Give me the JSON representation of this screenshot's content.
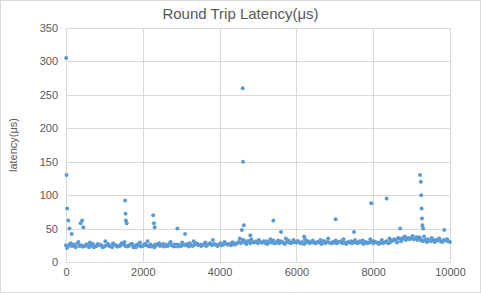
{
  "chart_data": {
    "type": "scatter",
    "title": "Round Trip Latency(μs)",
    "y_label": "latency(μs)",
    "color": "#5b9bd5",
    "marker": "circle",
    "grid": true,
    "xlim": [
      0,
      10000
    ],
    "xticks": [
      0,
      2000,
      4000,
      6000,
      8000,
      10000
    ],
    "ylim": [
      0,
      350
    ],
    "yticks": [
      0,
      50,
      100,
      150,
      200,
      250,
      300,
      350
    ],
    "x": [
      0,
      50,
      100,
      150,
      200,
      250,
      300,
      350,
      400,
      450,
      500,
      550,
      600,
      650,
      700,
      750,
      800,
      850,
      900,
      950,
      1000,
      1050,
      1100,
      1150,
      1200,
      1250,
      1300,
      1350,
      1400,
      1450,
      1500,
      1550,
      1600,
      1650,
      1700,
      1750,
      1800,
      1850,
      1900,
      1950,
      2000,
      2050,
      2100,
      2150,
      2200,
      2250,
      2300,
      2350,
      2400,
      2450,
      2500,
      2550,
      2600,
      2650,
      2700,
      2750,
      2800,
      2850,
      2900,
      2950,
      3000,
      3050,
      3100,
      3150,
      3200,
      3250,
      3300,
      3350,
      3400,
      3450,
      3500,
      3550,
      3600,
      3650,
      3700,
      3750,
      3800,
      3850,
      3900,
      3950,
      4000,
      4050,
      4100,
      4150,
      4200,
      4250,
      4300,
      4350,
      4400,
      4450,
      4500,
      4550,
      4600,
      4650,
      4700,
      4750,
      4800,
      4850,
      4900,
      4950,
      5000,
      5050,
      5100,
      5150,
      5200,
      5250,
      5300,
      5350,
      5400,
      5450,
      5500,
      5550,
      5600,
      5650,
      5700,
      5750,
      5800,
      5850,
      5900,
      5950,
      6000,
      6050,
      6100,
      6150,
      6200,
      6250,
      6300,
      6350,
      6400,
      6450,
      6500,
      6550,
      6600,
      6650,
      6700,
      6750,
      6800,
      6850,
      6900,
      6950,
      7000,
      7050,
      7100,
      7150,
      7200,
      7250,
      7300,
      7350,
      7400,
      7450,
      7500,
      7550,
      7600,
      7650,
      7700,
      7750,
      7800,
      7850,
      7900,
      7950,
      8000,
      8050,
      8100,
      8150,
      8200,
      8250,
      8300,
      8350,
      8400,
      8450,
      8500,
      8550,
      8600,
      8650,
      8700,
      8750,
      8800,
      8850,
      8900,
      8950,
      9000,
      9050,
      9100,
      9150,
      9200,
      9250,
      9300,
      9350,
      9400,
      9450,
      9500,
      9550,
      9600,
      9650,
      9700,
      9750,
      9800,
      9850,
      9900,
      9950,
      10000,
      25,
      125,
      225,
      325,
      425,
      525,
      625,
      725,
      825,
      925,
      1025,
      1125,
      1225,
      1325,
      1425,
      1525,
      1625,
      1725,
      1825,
      1925,
      2025,
      2125,
      2225,
      2325,
      2425,
      2525,
      2625,
      2725,
      2825,
      2925,
      3025,
      3125,
      3225,
      3325,
      3425,
      3525,
      3625,
      3725,
      3825,
      3925,
      4025,
      4125,
      4225,
      4325,
      4425,
      4525,
      4625,
      4725,
      4825,
      4925,
      5025,
      5125,
      5225,
      5325,
      5425,
      5525,
      5625,
      5725,
      5825,
      5925,
      6025,
      6125,
      6225,
      6325,
      6425,
      6525,
      6625,
      6725,
      6825,
      6925,
      7025,
      7125,
      7225,
      7325,
      7425,
      7525,
      7625,
      7725,
      7825,
      7925,
      8025,
      8125,
      8225,
      8325,
      8425,
      8525,
      8625,
      8725,
      8825,
      8925,
      9025,
      9125,
      9225,
      9325,
      9425,
      9525,
      9625,
      9725,
      9825,
      9925,
      5,
      15,
      30,
      60,
      90,
      150,
      380,
      420,
      450,
      1540,
      1550,
      1560,
      1580,
      2270,
      2290,
      2310,
      2900,
      3100,
      4580,
      4600,
      4610,
      4630,
      5400,
      5600,
      7020,
      7500,
      7950,
      8350,
      8700,
      9220,
      9240,
      9250,
      9260,
      9270,
      9280,
      9300,
      9850,
      4800,
      6200
    ],
    "values": [
      25,
      23,
      27,
      24,
      26,
      22,
      28,
      24,
      25,
      23,
      24,
      26,
      22,
      25,
      27,
      23,
      24,
      26,
      25,
      22,
      23,
      25,
      27,
      24,
      22,
      26,
      25,
      23,
      24,
      28,
      26,
      24,
      23,
      25,
      27,
      22,
      24,
      26,
      25,
      23,
      24,
      27,
      25,
      23,
      26,
      24,
      22,
      25,
      27,
      24,
      25,
      23,
      26,
      24,
      28,
      25,
      23,
      24,
      26,
      25,
      24,
      26,
      25,
      27,
      23,
      25,
      24,
      26,
      28,
      25,
      26,
      25,
      27,
      24,
      26,
      28,
      25,
      27,
      26,
      24,
      27,
      25,
      26,
      28,
      26,
      27,
      25,
      29,
      26,
      28,
      30,
      28,
      32,
      29,
      27,
      31,
      28,
      30,
      29,
      31,
      28,
      30,
      29,
      31,
      28,
      27,
      30,
      29,
      32,
      28,
      30,
      28,
      31,
      29,
      27,
      30,
      32,
      28,
      29,
      30,
      29,
      31,
      28,
      30,
      27,
      29,
      31,
      28,
      30,
      29,
      28,
      30,
      29,
      27,
      31,
      28,
      30,
      29,
      28,
      30,
      29,
      28,
      30,
      31,
      28,
      29,
      27,
      30,
      29,
      28,
      30,
      29,
      28,
      31,
      29,
      27,
      30,
      28,
      29,
      31,
      28,
      30,
      29,
      27,
      30,
      28,
      29,
      31,
      28,
      30,
      32,
      34,
      33,
      36,
      35,
      34,
      37,
      33,
      35,
      34,
      36,
      34,
      35,
      33,
      37,
      32,
      31,
      33,
      30,
      32,
      31,
      33,
      30,
      32,
      34,
      31,
      30,
      33,
      32,
      31,
      30,
      21,
      28,
      24,
      30,
      23,
      26,
      29,
      22,
      27,
      25,
      31,
      24,
      28,
      23,
      26,
      30,
      24,
      27,
      22,
      29,
      25,
      31,
      23,
      26,
      28,
      27,
      24,
      30,
      26,
      23,
      29,
      25,
      28,
      31,
      26,
      24,
      29,
      27,
      33,
      25,
      28,
      30,
      26,
      29,
      27,
      35,
      33,
      31,
      34,
      30,
      33,
      29,
      31,
      34,
      28,
      32,
      30,
      35,
      29,
      33,
      31,
      28,
      34,
      30,
      32,
      29,
      33,
      31,
      35,
      28,
      32,
      30,
      34,
      29,
      31,
      33,
      30,
      32,
      29,
      34,
      31,
      28,
      33,
      30,
      35,
      32,
      29,
      31,
      38,
      36,
      39,
      37,
      35,
      38,
      34,
      36,
      33,
      35,
      32,
      34,
      305,
      130,
      80,
      62,
      50,
      42,
      58,
      62,
      52,
      92,
      72,
      62,
      58,
      70,
      58,
      52,
      50,
      42,
      48,
      260,
      150,
      55,
      62,
      45,
      64,
      45,
      88,
      95,
      50,
      130,
      120,
      100,
      80,
      65,
      55,
      50,
      48,
      40,
      38
    ]
  }
}
